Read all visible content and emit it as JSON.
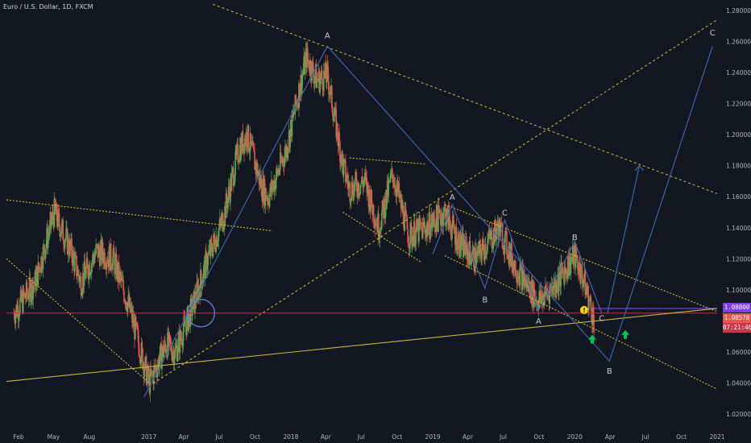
{
  "symbol_title": "Euro / U.S. Dollar, 1D, FXCM",
  "colors": {
    "background": "#131722",
    "up_candle": "#4caf50",
    "down_candle": "#ef5350",
    "elliott_line": "#3f64a8",
    "trend_dotted": "#d4c12a",
    "support_solid": "#c9b53b",
    "horizontal_level": "#b2394f",
    "purple_level": "#7b3fe4",
    "circle": "#5b86d6",
    "arrow_green": "#00c853",
    "warning": "#ffd600"
  },
  "chart_data": {
    "type": "candlestick",
    "title": "Euro / U.S. Dollar, 1D, FXCM",
    "x_tick_labels": [
      "Feb",
      "May",
      "Aug",
      "2017",
      "Apr",
      "Jul",
      "Oct",
      "2018",
      "Apr",
      "Jul",
      "Oct",
      "2019",
      "Apr",
      "Jul",
      "Oct",
      "2020",
      "Apr",
      "Jul",
      "Oct",
      "2021"
    ],
    "y_tick_labels": [
      "1.28000",
      "1.26000",
      "1.24000",
      "1.22000",
      "1.20000",
      "1.18000",
      "1.16000",
      "1.14000",
      "1.12000",
      "1.10000",
      "1.08000",
      "1.06000",
      "1.04000",
      "1.02000"
    ],
    "ylim": [
      1.01,
      1.285
    ],
    "price_path": [
      {
        "x": "2016-01-20",
        "y": 1.085
      },
      {
        "x": "2016-03-15",
        "y": 1.105
      },
      {
        "x": "2016-05-03",
        "y": 1.15
      },
      {
        "x": "2016-06-15",
        "y": 1.125
      },
      {
        "x": "2016-07-10",
        "y": 1.105
      },
      {
        "x": "2016-08-20",
        "y": 1.125
      },
      {
        "x": "2016-10-01",
        "y": 1.12
      },
      {
        "x": "2016-11-10",
        "y": 1.09
      },
      {
        "x": "2017-01-02",
        "y": 1.04
      },
      {
        "x": "2017-02-15",
        "y": 1.065
      },
      {
        "x": "2017-03-10",
        "y": 1.06
      },
      {
        "x": "2017-04-25",
        "y": 1.09
      },
      {
        "x": "2017-06-01",
        "y": 1.12
      },
      {
        "x": "2017-07-10",
        "y": 1.145
      },
      {
        "x": "2017-08-20",
        "y": 1.19
      },
      {
        "x": "2017-09-10",
        "y": 1.2
      },
      {
        "x": "2017-10-20",
        "y": 1.165
      },
      {
        "x": "2017-11-05",
        "y": 1.16
      },
      {
        "x": "2017-12-20",
        "y": 1.19
      },
      {
        "x": "2018-02-10",
        "y": 1.25
      },
      {
        "x": "2018-03-10",
        "y": 1.235
      },
      {
        "x": "2018-04-05",
        "y": 1.238
      },
      {
        "x": "2018-05-15",
        "y": 1.18
      },
      {
        "x": "2018-06-01",
        "y": 1.165
      },
      {
        "x": "2018-07-10",
        "y": 1.17
      },
      {
        "x": "2018-08-15",
        "y": 1.14
      },
      {
        "x": "2018-09-20",
        "y": 1.175
      },
      {
        "x": "2018-10-31",
        "y": 1.135
      },
      {
        "x": "2018-12-15",
        "y": 1.14
      },
      {
        "x": "2019-02-01",
        "y": 1.15
      },
      {
        "x": "2019-03-10",
        "y": 1.13
      },
      {
        "x": "2019-04-20",
        "y": 1.12
      },
      {
        "x": "2019-06-20",
        "y": 1.14
      },
      {
        "x": "2019-08-01",
        "y": 1.115
      },
      {
        "x": "2019-09-30",
        "y": 1.092
      },
      {
        "x": "2019-11-15",
        "y": 1.105
      },
      {
        "x": "2019-12-31",
        "y": 1.122
      },
      {
        "x": "2020-01-25",
        "y": 1.105
      },
      {
        "x": "2020-02-20",
        "y": 1.08
      }
    ],
    "annotations": {
      "wave_labels": [
        {
          "text": "A",
          "x": "2018-04-05",
          "y": 1.262
        },
        {
          "text": "A",
          "x": "2019-02-20",
          "y": 1.158
        },
        {
          "text": "B",
          "x": "2019-05-15",
          "y": 1.092
        },
        {
          "text": "C",
          "x": "2019-07-05",
          "y": 1.148
        },
        {
          "text": "A",
          "x": "2019-09-30",
          "y": 1.078
        },
        {
          "text": "B",
          "x": "2020-01-01",
          "y": 1.132
        },
        {
          "text": "C",
          "x": "2020-03-10",
          "y": 1.08
        },
        {
          "text": "B",
          "x": "2020-03-30",
          "y": 1.046
        },
        {
          "text": "C",
          "x": "2020-12-20",
          "y": 1.264
        }
      ]
    },
    "last_price": "1.08578",
    "level_price": "1.08800",
    "countdown": "07:21:46",
    "grid": false,
    "legend": "top-left"
  }
}
